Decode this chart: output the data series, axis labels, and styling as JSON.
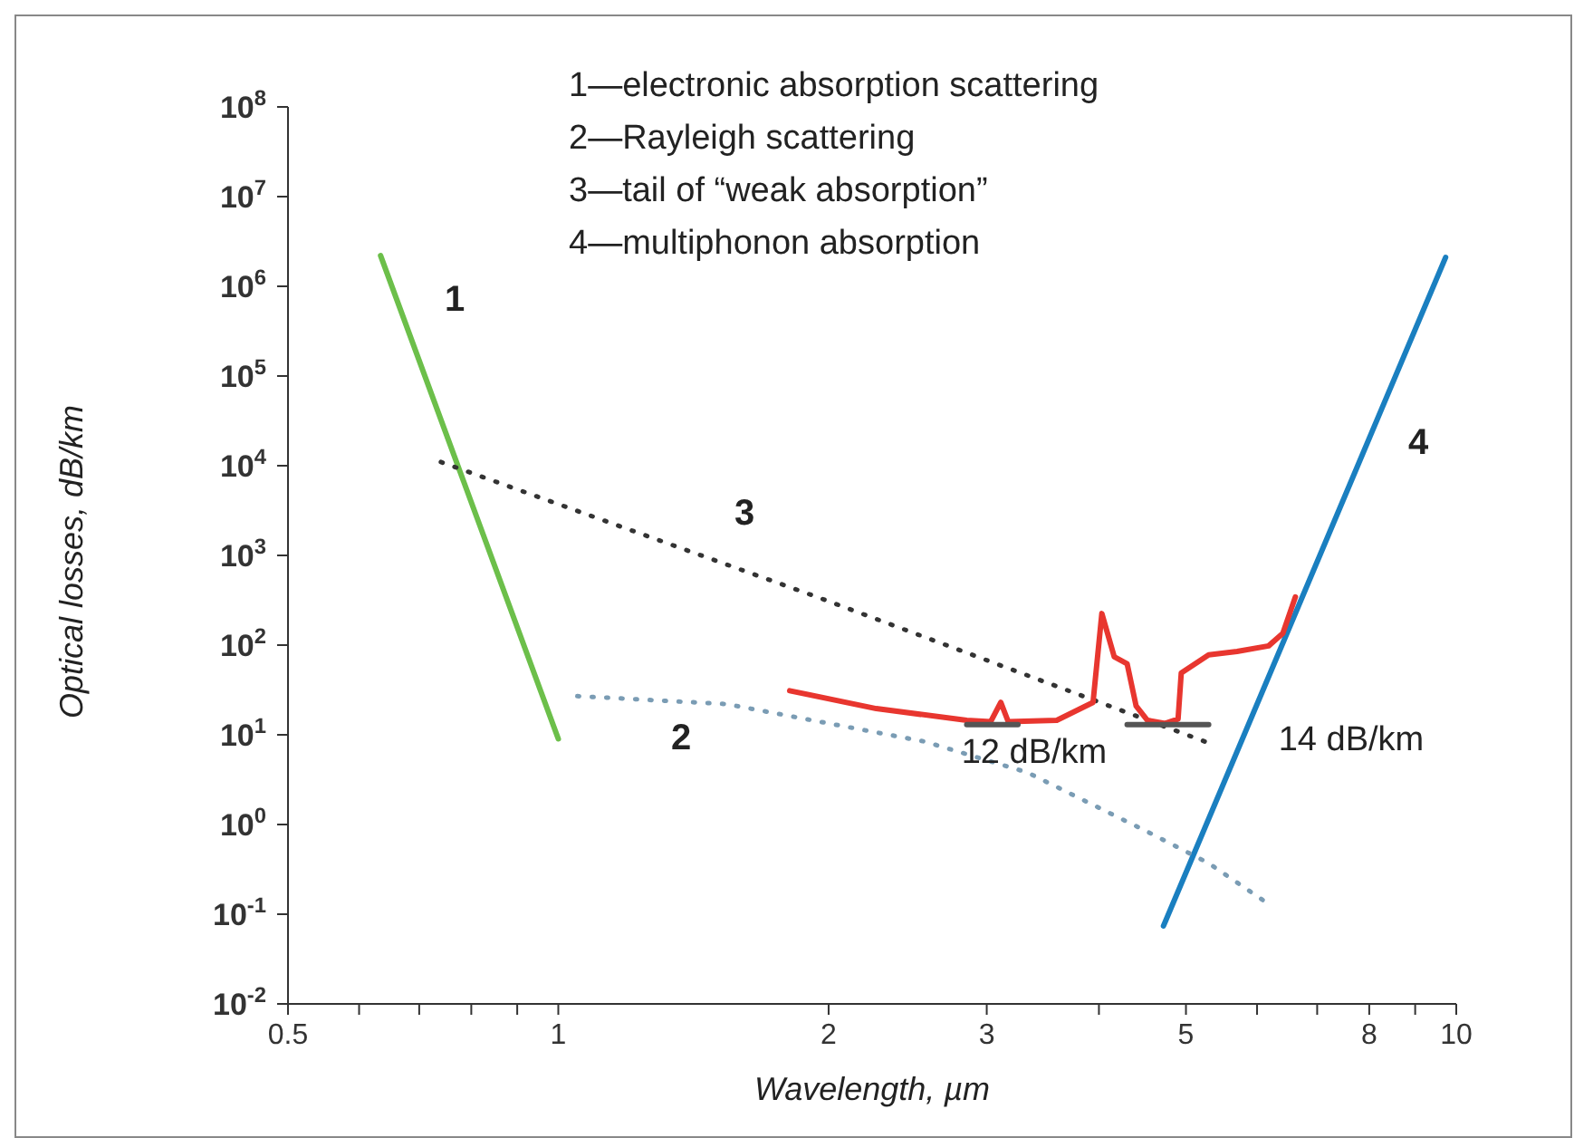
{
  "chart_data": {
    "type": "line",
    "xlabel": "Wavelength, µm",
    "ylabel": "Optical losses, dB/km",
    "log": "xy",
    "grid": false,
    "marker": "none",
    "xlim": [
      0.5,
      10
    ],
    "ylim": [
      0.01,
      100000000
    ],
    "xticks": [
      0.5,
      {
        "value": 0.6,
        "label": null
      },
      {
        "value": 0.7,
        "label": null
      },
      {
        "value": 0.8,
        "label": null
      },
      {
        "value": 0.9,
        "label": null
      },
      1,
      2,
      3,
      {
        "value": 4,
        "label": null
      },
      5,
      {
        "value": 6,
        "label": null
      },
      {
        "value": 7,
        "label": null
      },
      8,
      {
        "value": 9,
        "label": null
      },
      10
    ],
    "yticks": [
      {
        "value": 0.01,
        "label": "10$^{-2}$"
      },
      {
        "value": 0.1,
        "label": "10$^{-1}$"
      },
      {
        "value": 1,
        "label": "10$^{0}$"
      },
      {
        "value": 10,
        "label": "10$^{1}$"
      },
      {
        "value": 100,
        "label": "10$^{2}$"
      },
      {
        "value": 1000,
        "label": "10$^{3}$"
      },
      {
        "value": 10000,
        "label": "10$^{4}$"
      },
      {
        "value": 100000,
        "label": "10$^{5}$"
      },
      {
        "value": 1000000,
        "label": "10$^{6}$"
      },
      {
        "value": 10000000,
        "label": "10$^{7}$"
      },
      {
        "value": 100000000,
        "label": "10$^{8}$"
      }
    ],
    "series": [
      {
        "color": "#6cbf4a",
        "line_style": "solid",
        "x": [
          0.634,
          1.0
        ],
        "values": [
          2200000,
          9
        ]
      },
      {
        "color": "#1a7fc0",
        "line_style": "solid",
        "x": [
          4.72,
          9.73
        ],
        "values": [
          0.074,
          2100000
        ]
      },
      {
        "color": "#333333",
        "line_style": "dotted",
        "x": [
          0.74,
          1.94,
          5.32
        ],
        "values": [
          11000,
          345,
          8
        ]
      },
      {
        "color": "#7a9cb4",
        "line_style": "dotted",
        "x": [
          1.05,
          1.54,
          2.56,
          3.33,
          4.53,
          5.3,
          6.18
        ],
        "values": [
          27,
          22,
          8.4,
          3.8,
          0.83,
          0.37,
          0.13
        ]
      },
      {
        "color": "#e8362f",
        "line_style": "solid",
        "x": [
          1.81,
          2.26,
          2.85,
          3.03,
          3.11,
          3.17,
          3.59,
          3.94,
          4.03,
          4.16,
          4.3,
          4.4,
          4.53,
          4.74,
          4.9,
          4.94,
          5.3,
          5.7,
          6.18,
          6.41,
          6.62
        ],
        "values": [
          31,
          19.6,
          14.5,
          14,
          23,
          14,
          14.5,
          23,
          225,
          74,
          62,
          21,
          14.5,
          13.4,
          15,
          49,
          78,
          85,
          98,
          135,
          345
        ]
      },
      {
        "color": "#555555",
        "line_style": "solid",
        "x": [
          2.85,
          3.25
        ],
        "values": [
          13,
          13
        ]
      },
      {
        "color": "#555555",
        "line_style": "solid",
        "x": [
          4.3,
          5.3
        ],
        "values": [
          13,
          13
        ]
      }
    ],
    "annotations": [
      "1—electronic absorption scattering",
      "2—Rayleigh scattering",
      "3—tail of “weak absorption”",
      "4—multiphonon absorption",
      "1",
      "2",
      "3",
      "4",
      "12 dB/km",
      "14 dB/km"
    ]
  }
}
